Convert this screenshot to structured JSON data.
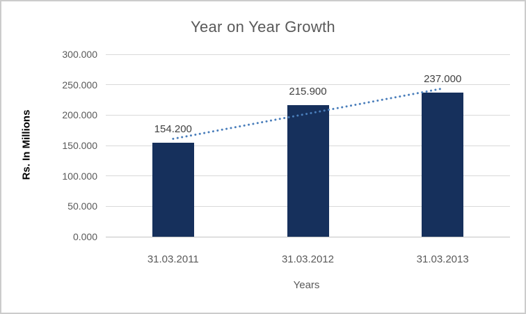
{
  "chart_data": {
    "type": "bar",
    "title": "Year on Year Growth",
    "xlabel": "Years",
    "ylabel": "Rs. In Millions",
    "categories": [
      "31.03.2011",
      "31.03.2012",
      "31.03.2013"
    ],
    "values": [
      154.2,
      215.9,
      237.0
    ],
    "data_labels": [
      "154.200",
      "215.900",
      "237.000"
    ],
    "ylim": [
      0,
      300
    ],
    "ytick_step": 50,
    "ytick_labels": [
      "0.000",
      "50.000",
      "100.000",
      "150.000",
      "200.000",
      "250.000",
      "300.000"
    ],
    "grid": true,
    "legend": "none",
    "trendline": {
      "type": "linear",
      "style": "dotted"
    },
    "colors": {
      "bar": "#16305C",
      "trendline": "#4A7EBB",
      "gridline": "#D9D9D9",
      "axis_line": "#C3C3C3",
      "title_text": "#595959",
      "tick_text": "#595959",
      "data_label_text": "#404040",
      "axis_title_text": "#595959",
      "y_axis_title_text": "#000000",
      "frame_border": "#CCCCCC",
      "background": "#FFFFFF"
    }
  }
}
